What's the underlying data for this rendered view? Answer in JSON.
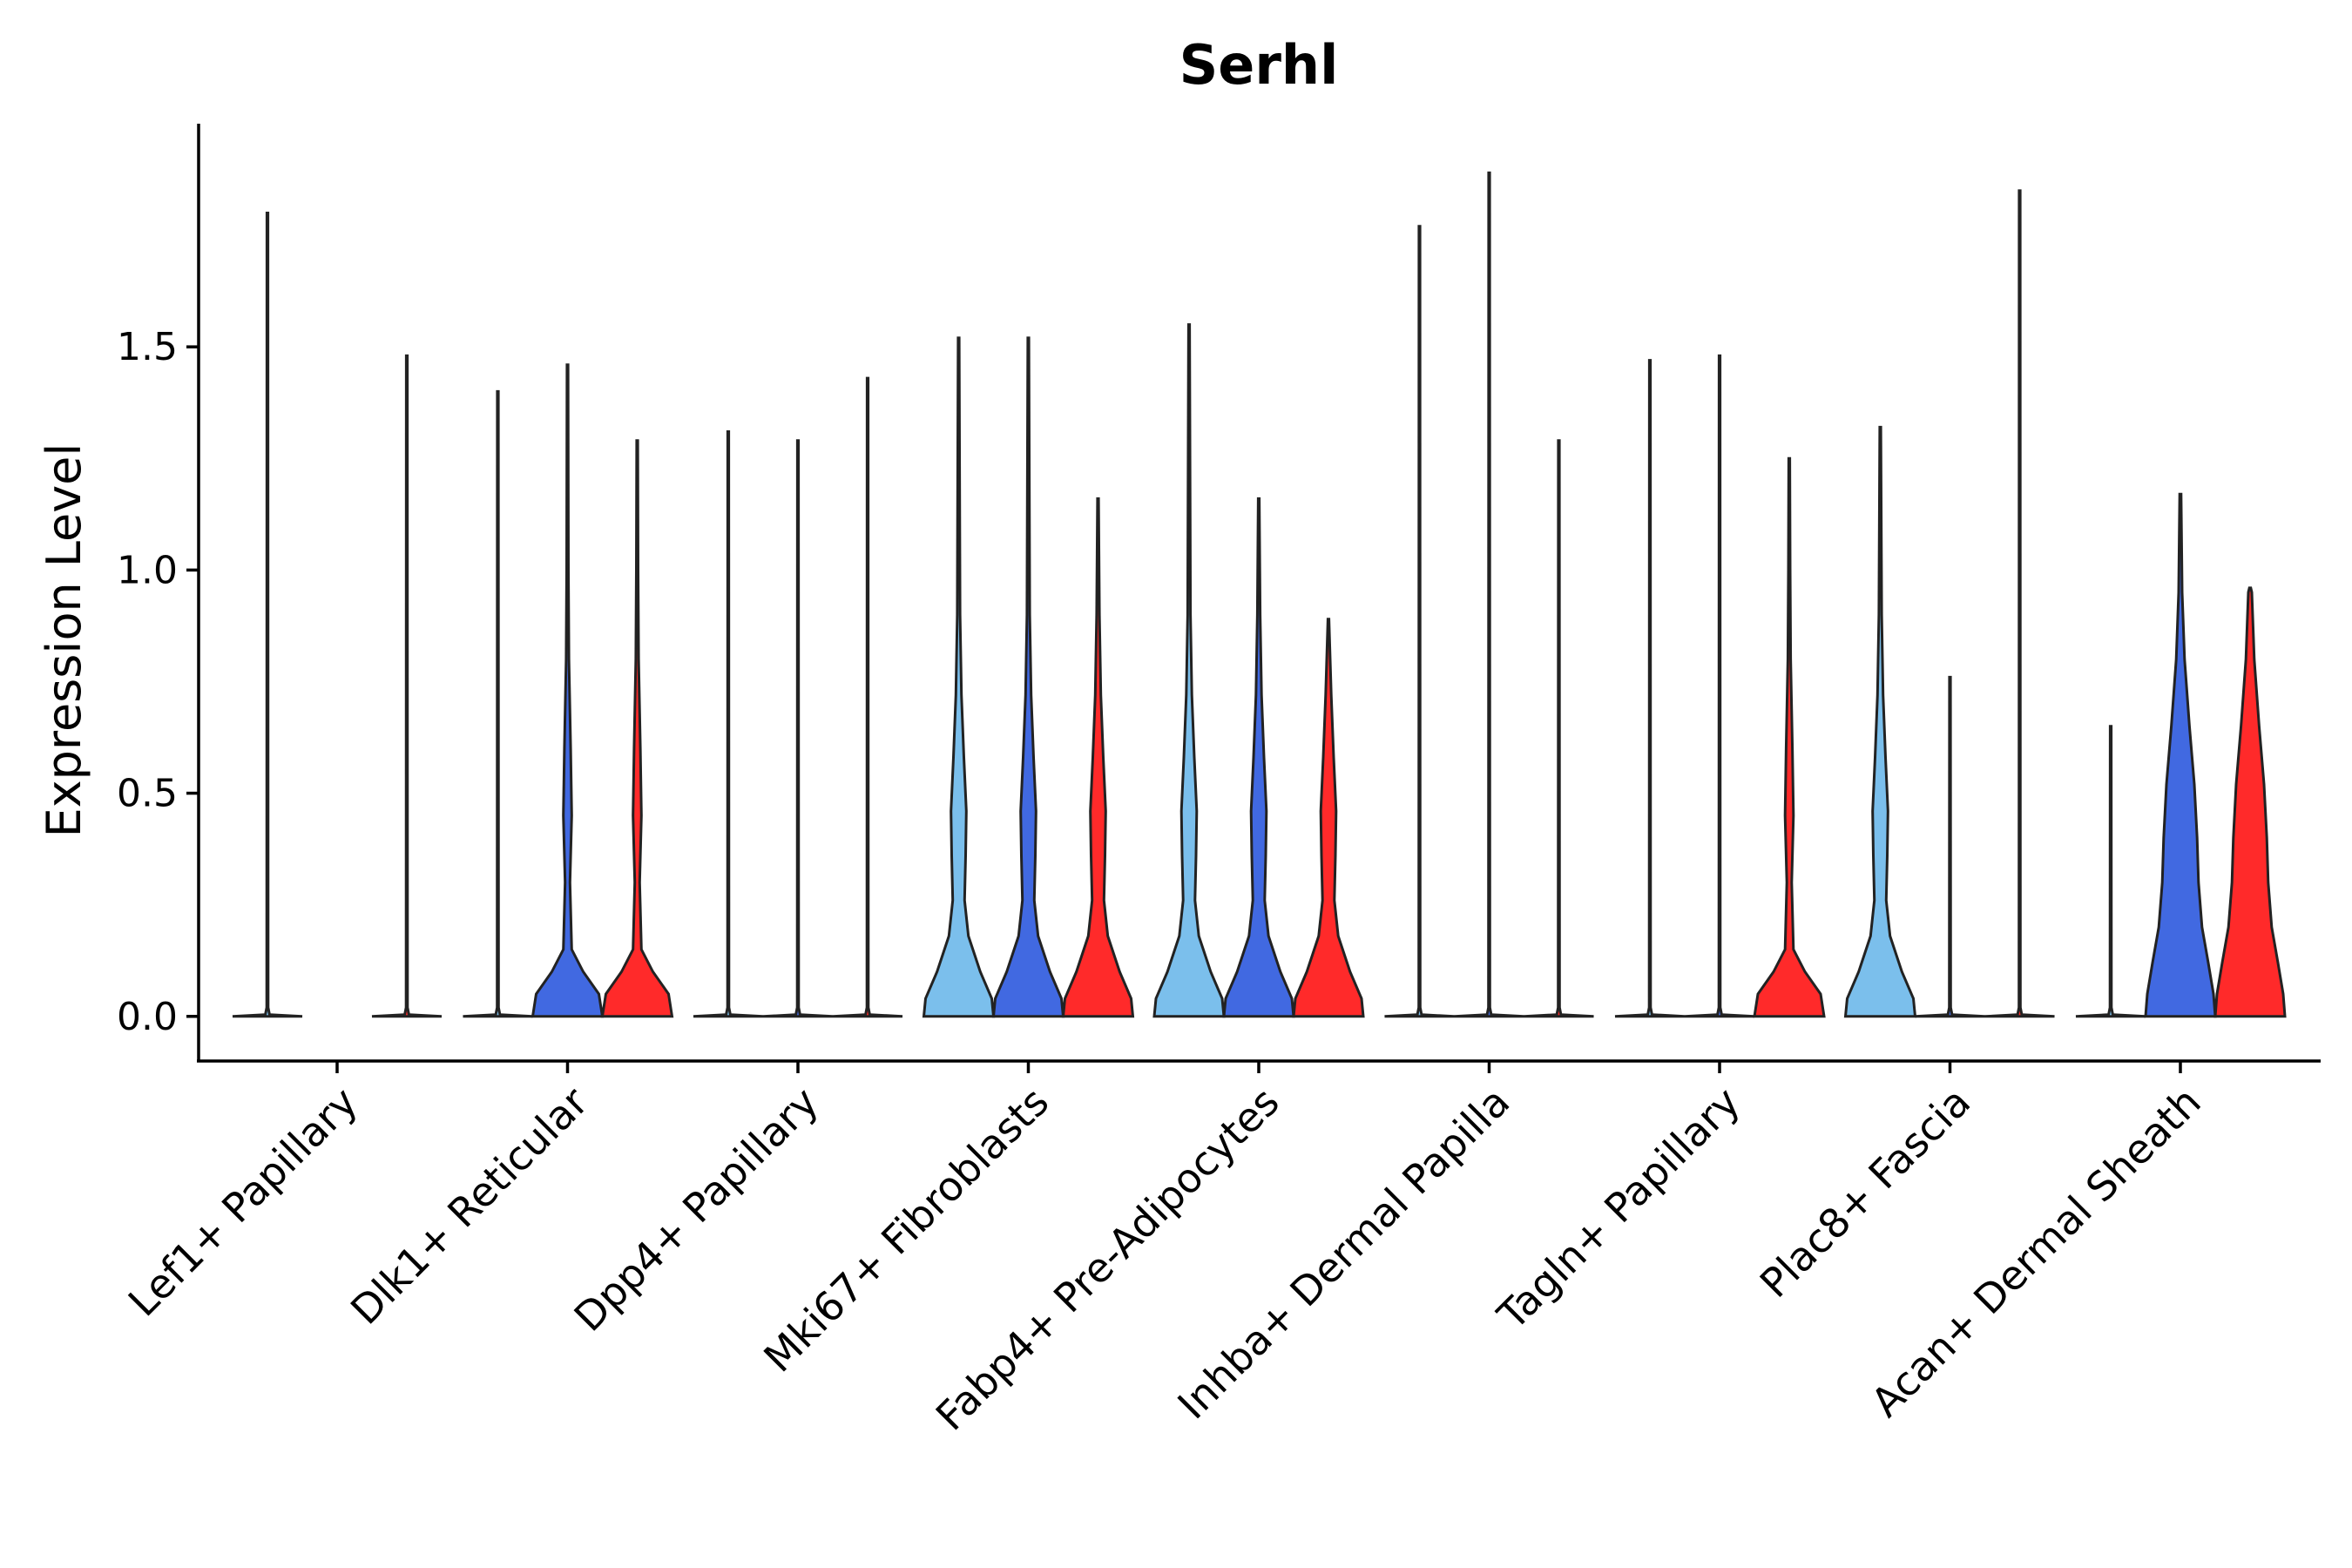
{
  "chart_data": {
    "type": "violin",
    "title": "Serhl",
    "xlabel": "",
    "ylabel": "Expression Level",
    "ylim": [
      -0.1,
      2.0
    ],
    "yticks": [
      0.0,
      0.5,
      1.0,
      1.5
    ],
    "ytick_labels": [
      "0.0",
      "0.5",
      "1.0",
      "1.5"
    ],
    "categories": [
      "Lef1+ Papillary",
      "Dlk1+ Reticular",
      "Dpp4+ Papillary",
      "Mki67+ Fibroblasts",
      "Fabp4+ Pre-Adipocytes",
      "Inhba+ Dermal Papilla",
      "Tagln+ Papillary",
      "Plac8+ Fascia",
      "Acan+ Dermal Sheath"
    ],
    "groups": [
      {
        "name": "group 1",
        "color": "#7bbfec"
      },
      {
        "name": "group 2",
        "color": "#4169e1"
      },
      {
        "name": "group 3",
        "color": "#ff2a2a"
      }
    ],
    "violins": [
      {
        "category": 0,
        "group": 0,
        "max": 1.8,
        "profile": "flat"
      },
      {
        "category": 0,
        "group": 2,
        "max": 1.48,
        "profile": "flat"
      },
      {
        "category": 1,
        "group": 0,
        "max": 1.4,
        "profile": "flat"
      },
      {
        "category": 1,
        "group": 1,
        "max": 1.46,
        "profile": "med"
      },
      {
        "category": 1,
        "group": 2,
        "max": 1.29,
        "profile": "med"
      },
      {
        "category": 2,
        "group": 0,
        "max": 1.31,
        "profile": "flat"
      },
      {
        "category": 2,
        "group": 1,
        "max": 1.29,
        "profile": "flat"
      },
      {
        "category": 2,
        "group": 2,
        "max": 1.43,
        "profile": "flat"
      },
      {
        "category": 3,
        "group": 0,
        "max": 1.52,
        "profile": "wide"
      },
      {
        "category": 3,
        "group": 1,
        "max": 1.52,
        "profile": "wide"
      },
      {
        "category": 3,
        "group": 2,
        "max": 1.16,
        "profile": "wide"
      },
      {
        "category": 4,
        "group": 0,
        "max": 1.55,
        "profile": "wide"
      },
      {
        "category": 4,
        "group": 1,
        "max": 1.16,
        "profile": "wide"
      },
      {
        "category": 4,
        "group": 2,
        "max": 0.89,
        "profile": "wide"
      },
      {
        "category": 5,
        "group": 0,
        "max": 1.77,
        "profile": "flat"
      },
      {
        "category": 5,
        "group": 1,
        "max": 1.89,
        "profile": "flat"
      },
      {
        "category": 5,
        "group": 2,
        "max": 1.29,
        "profile": "flat"
      },
      {
        "category": 6,
        "group": 0,
        "max": 1.47,
        "profile": "flat"
      },
      {
        "category": 6,
        "group": 1,
        "max": 1.48,
        "profile": "flat"
      },
      {
        "category": 6,
        "group": 2,
        "max": 1.25,
        "profile": "med"
      },
      {
        "category": 7,
        "group": 0,
        "max": 1.32,
        "profile": "wide"
      },
      {
        "category": 7,
        "group": 1,
        "max": 0.76,
        "profile": "flat"
      },
      {
        "category": 7,
        "group": 2,
        "max": 1.85,
        "profile": "flat"
      },
      {
        "category": 8,
        "group": 0,
        "max": 0.65,
        "profile": "flat"
      },
      {
        "category": 8,
        "group": 1,
        "max": 1.17,
        "profile": "full"
      },
      {
        "category": 8,
        "group": 2,
        "max": 0.96,
        "profile": "full"
      }
    ]
  }
}
